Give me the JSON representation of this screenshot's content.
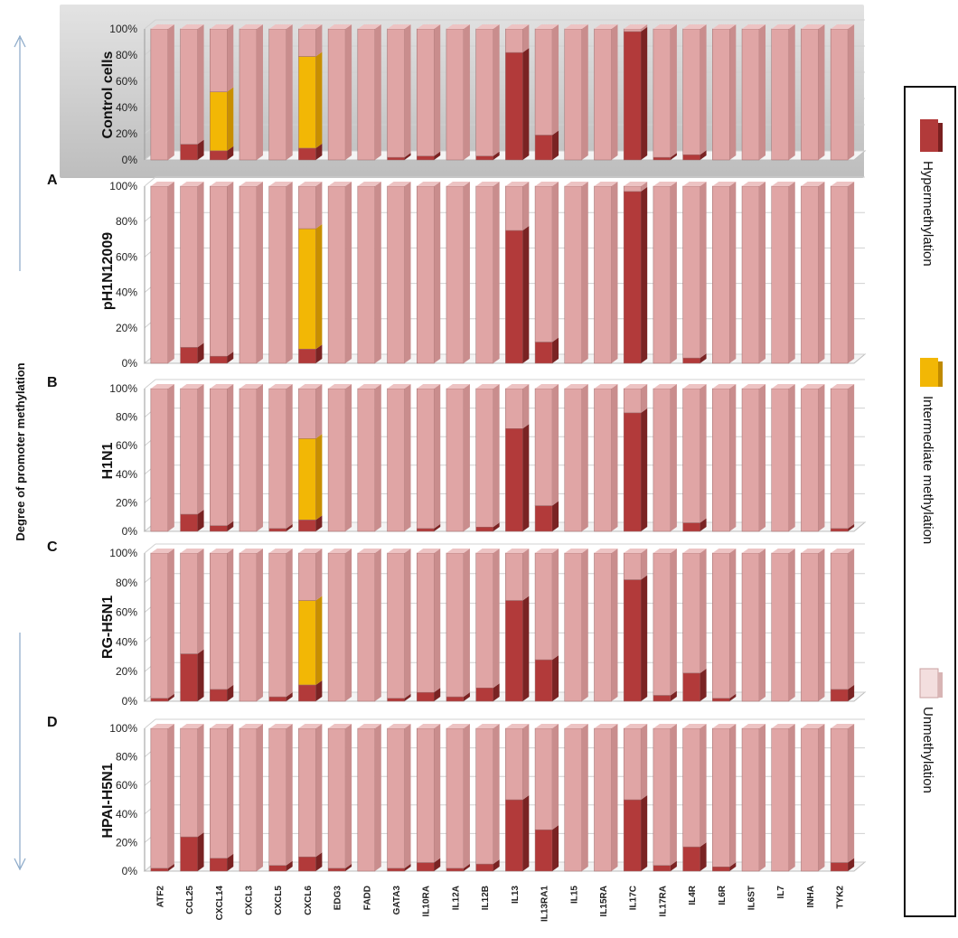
{
  "figure": {
    "ylabel": "Degree of promoter methylation",
    "legend": {
      "placement": "right",
      "items": [
        {
          "label": "Hypermethylation",
          "color": "#b23a3a"
        },
        {
          "label": "Intermediate methylation",
          "color": "#f2b705"
        },
        {
          "label": "Unmethylation",
          "color": "#e0a5a5"
        }
      ]
    }
  },
  "chart_data": [
    {
      "type": "bar",
      "stacked": true,
      "panel_label": "",
      "title": "Control cells",
      "ylim": [
        0,
        100
      ],
      "yticks": [
        "0%",
        "20%",
        "40%",
        "60%",
        "80%",
        "100%"
      ],
      "categories": [
        "ATF2",
        "CCL25",
        "CXCL14",
        "CXCL3",
        "CXCL5",
        "CXCL6",
        "EDG3",
        "FADD",
        "GATA3",
        "IL10RA",
        "IL12A",
        "IL12B",
        "IL13",
        "IL13RA1",
        "IL15",
        "IL15RA",
        "IL17C",
        "IL17RA",
        "IL4R",
        "IL6R",
        "IL6ST",
        "IL7",
        "INHA",
        "TYK2"
      ],
      "series": [
        {
          "name": "Hypermethylation",
          "values": [
            0,
            12,
            7,
            0,
            0,
            9,
            0,
            0,
            2,
            3,
            0,
            3,
            82,
            19,
            0,
            0,
            98,
            2,
            4,
            0,
            0,
            0,
            0,
            0
          ]
        },
        {
          "name": "Intermediate methylation",
          "values": [
            0,
            0,
            45,
            0,
            0,
            70,
            0,
            0,
            0,
            0,
            0,
            0,
            0,
            0,
            0,
            0,
            0,
            0,
            0,
            0,
            0,
            0,
            0,
            0
          ]
        },
        {
          "name": "Unmethylation",
          "values": [
            100,
            88,
            48,
            100,
            100,
            21,
            100,
            100,
            98,
            97,
            100,
            97,
            18,
            81,
            100,
            100,
            2,
            98,
            96,
            100,
            100,
            100,
            100,
            100
          ]
        }
      ]
    },
    {
      "type": "bar",
      "stacked": true,
      "panel_label": "A",
      "title": "pH1N12009",
      "ylim": [
        0,
        100
      ],
      "yticks": [
        "0%",
        "20%",
        "40%",
        "60%",
        "80%",
        "100%"
      ],
      "categories": [
        "ATF2",
        "CCL25",
        "CXCL14",
        "CXCL3",
        "CXCL5",
        "CXCL6",
        "EDG3",
        "FADD",
        "GATA3",
        "IL10RA",
        "IL12A",
        "IL12B",
        "IL13",
        "IL13RA1",
        "IL15",
        "IL15RA",
        "IL17C",
        "IL17RA",
        "IL4R",
        "IL6R",
        "IL6ST",
        "IL7",
        "INHA",
        "TYK2"
      ],
      "series": [
        {
          "name": "Hypermethylation",
          "values": [
            0,
            9,
            4,
            0,
            0,
            8,
            0,
            0,
            0,
            0,
            0,
            0,
            75,
            12,
            0,
            0,
            97,
            0,
            3,
            0,
            0,
            0,
            0,
            0
          ]
        },
        {
          "name": "Intermediate methylation",
          "values": [
            0,
            0,
            0,
            0,
            0,
            68,
            0,
            0,
            0,
            0,
            0,
            0,
            0,
            0,
            0,
            0,
            0,
            0,
            0,
            0,
            0,
            0,
            0,
            0
          ]
        },
        {
          "name": "Unmethylation",
          "values": [
            100,
            91,
            96,
            100,
            100,
            24,
            100,
            100,
            100,
            100,
            100,
            100,
            25,
            88,
            100,
            100,
            3,
            100,
            97,
            100,
            100,
            100,
            100,
            100
          ]
        }
      ]
    },
    {
      "type": "bar",
      "stacked": true,
      "panel_label": "B",
      "title": "H1N1",
      "ylim": [
        0,
        100
      ],
      "yticks": [
        "0%",
        "20%",
        "40%",
        "60%",
        "80%",
        "100%"
      ],
      "categories": [
        "ATF2",
        "CCL25",
        "CXCL14",
        "CXCL3",
        "CXCL5",
        "CXCL6",
        "EDG3",
        "FADD",
        "GATA3",
        "IL10RA",
        "IL12A",
        "IL12B",
        "IL13",
        "IL13RA1",
        "IL15",
        "IL15RA",
        "IL17C",
        "IL17RA",
        "IL4R",
        "IL6R",
        "IL6ST",
        "IL7",
        "INHA",
        "TYK2"
      ],
      "series": [
        {
          "name": "Hypermethylation",
          "values": [
            0,
            12,
            4,
            0,
            2,
            8,
            0,
            0,
            0,
            2,
            0,
            3,
            72,
            18,
            0,
            0,
            83,
            0,
            6,
            0,
            0,
            0,
            0,
            2
          ]
        },
        {
          "name": "Intermediate methylation",
          "values": [
            0,
            0,
            0,
            0,
            0,
            57,
            0,
            0,
            0,
            0,
            0,
            0,
            0,
            0,
            0,
            0,
            0,
            0,
            0,
            0,
            0,
            0,
            0,
            0
          ]
        },
        {
          "name": "Unmethylation",
          "values": [
            100,
            88,
            96,
            100,
            98,
            35,
            100,
            100,
            100,
            98,
            100,
            97,
            28,
            82,
            100,
            100,
            17,
            100,
            94,
            100,
            100,
            100,
            100,
            98
          ]
        }
      ]
    },
    {
      "type": "bar",
      "stacked": true,
      "panel_label": "C",
      "title": "RG-H5N1",
      "ylim": [
        0,
        100
      ],
      "yticks": [
        "0%",
        "20%",
        "40%",
        "60%",
        "80%",
        "100%"
      ],
      "categories": [
        "ATF2",
        "CCL25",
        "CXCL14",
        "CXCL3",
        "CXCL5",
        "CXCL6",
        "EDG3",
        "FADD",
        "GATA3",
        "IL10RA",
        "IL12A",
        "IL12B",
        "IL13",
        "IL13RA1",
        "IL15",
        "IL15RA",
        "IL17C",
        "IL17RA",
        "IL4R",
        "IL6R",
        "IL6ST",
        "IL7",
        "INHA",
        "TYK2"
      ],
      "series": [
        {
          "name": "Hypermethylation",
          "values": [
            2,
            32,
            8,
            0,
            3,
            11,
            0,
            0,
            2,
            6,
            3,
            9,
            68,
            28,
            0,
            0,
            82,
            4,
            19,
            2,
            0,
            0,
            0,
            8
          ]
        },
        {
          "name": "Intermediate methylation",
          "values": [
            0,
            0,
            0,
            0,
            0,
            57,
            0,
            0,
            0,
            0,
            0,
            0,
            0,
            0,
            0,
            0,
            0,
            0,
            0,
            0,
            0,
            0,
            0,
            0
          ]
        },
        {
          "name": "Unmethylation",
          "values": [
            98,
            68,
            92,
            100,
            97,
            32,
            100,
            100,
            98,
            94,
            97,
            91,
            32,
            72,
            100,
            100,
            18,
            96,
            81,
            98,
            100,
            100,
            100,
            92
          ]
        }
      ]
    },
    {
      "type": "bar",
      "stacked": true,
      "panel_label": "D",
      "title": "HPAI-H5N1",
      "ylim": [
        0,
        100
      ],
      "yticks": [
        "0%",
        "20%",
        "40%",
        "60%",
        "80%",
        "100%"
      ],
      "categories": [
        "ATF2",
        "CCL25",
        "CXCL14",
        "CXCL3",
        "CXCL5",
        "CXCL6",
        "EDG3",
        "FADD",
        "GATA3",
        "IL10RA",
        "IL12A",
        "IL12B",
        "IL13",
        "IL13RA1",
        "IL15",
        "IL15RA",
        "IL17C",
        "IL17RA",
        "IL4R",
        "IL6R",
        "IL6ST",
        "IL7",
        "INHA",
        "TYK2"
      ],
      "series": [
        {
          "name": "Hypermethylation",
          "values": [
            2,
            24,
            9,
            0,
            4,
            10,
            2,
            0,
            2,
            6,
            2,
            5,
            50,
            29,
            0,
            0,
            50,
            4,
            17,
            3,
            0,
            0,
            0,
            6
          ]
        },
        {
          "name": "Intermediate methylation",
          "values": [
            0,
            0,
            0,
            0,
            0,
            0,
            0,
            0,
            0,
            0,
            0,
            0,
            0,
            0,
            0,
            0,
            0,
            0,
            0,
            0,
            0,
            0,
            0,
            0
          ]
        },
        {
          "name": "Unmethylation",
          "values": [
            98,
            76,
            91,
            100,
            96,
            90,
            98,
            100,
            98,
            94,
            98,
            95,
            50,
            71,
            100,
            100,
            50,
            96,
            83,
            97,
            100,
            100,
            100,
            94
          ]
        }
      ]
    }
  ]
}
